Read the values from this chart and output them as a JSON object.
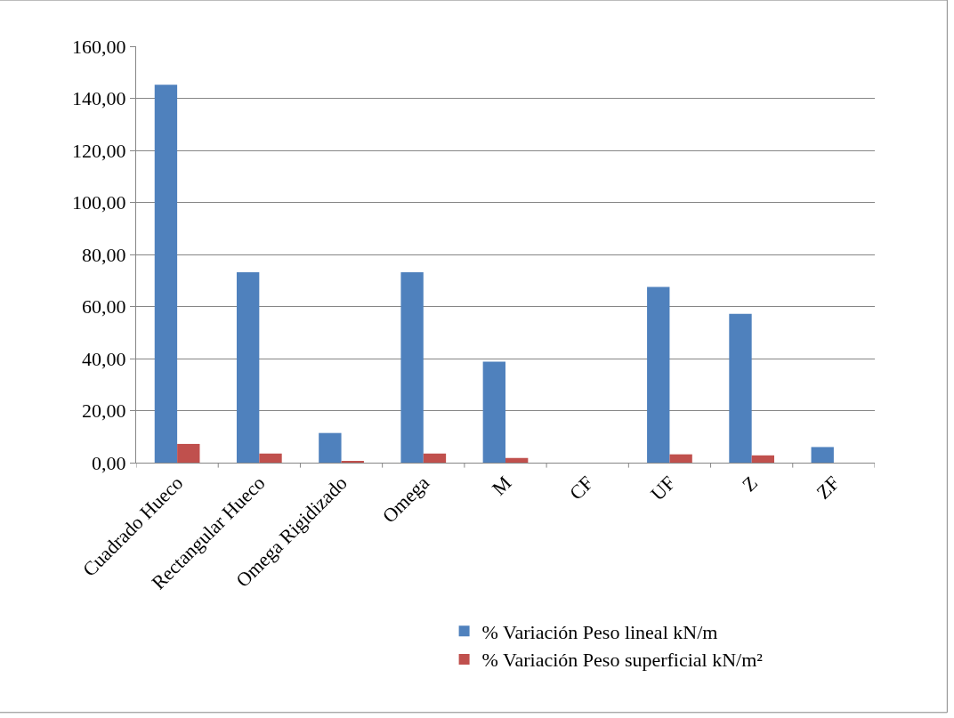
{
  "chart_data": {
    "type": "bar",
    "categories": [
      "Cuadrado Hueco",
      "Rectangular Hueco",
      "Omega Rigidizado",
      "Omega",
      "M",
      "CF",
      "UF",
      "Z",
      "ZF"
    ],
    "series": [
      {
        "name": "% Variación Peso lineal kN/m",
        "color": "#4f81bd",
        "values": [
          145.2,
          73.2,
          11.4,
          73.2,
          38.8,
          0,
          67.5,
          57.2,
          6
        ]
      },
      {
        "name": "% Variación Peso superficial kN/m²",
        "color": "#c0504d",
        "values": [
          7.2,
          3.5,
          0.5,
          3.5,
          1.8,
          0,
          3.2,
          2.8,
          0
        ]
      }
    ],
    "ylim": [
      0,
      160
    ],
    "yticks": [
      {
        "value": 0,
        "label": "0,00"
      },
      {
        "value": 20,
        "label": "20,00"
      },
      {
        "value": 40,
        "label": "40,00"
      },
      {
        "value": 60,
        "label": "60,00"
      },
      {
        "value": 80,
        "label": "80,00"
      },
      {
        "value": 100,
        "label": "100,00"
      },
      {
        "value": 120,
        "label": "120,00"
      },
      {
        "value": 140,
        "label": "140,00"
      },
      {
        "value": 160,
        "label": "160,00"
      }
    ],
    "grid": "y",
    "legend": "bottom"
  }
}
